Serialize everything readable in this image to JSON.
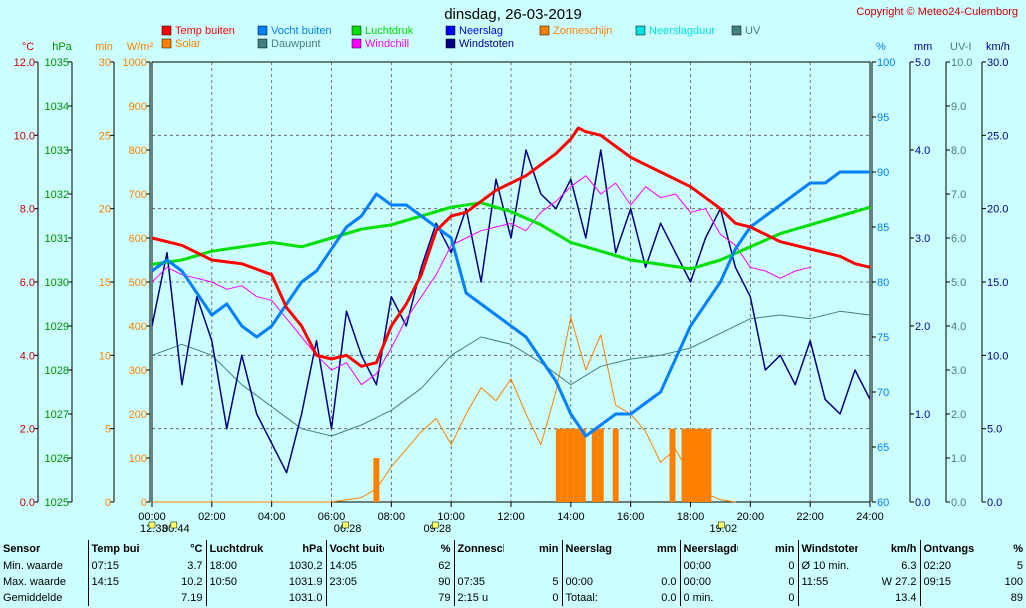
{
  "title": "dinsdag, 26-03-2019",
  "copyright": "Copyright © Meteo24-Culemborg",
  "chart_data": {
    "type": "line",
    "x_ticks": [
      "00:00",
      "02:00",
      "04:00",
      "06:00",
      "08:00",
      "10:00",
      "12:00",
      "14:00",
      "16:00",
      "18:00",
      "20:00",
      "22:00",
      "24:00"
    ],
    "x_range": [
      0,
      24
    ],
    "legend": [
      {
        "name": "Temp buiten",
        "color": "#ff0000"
      },
      {
        "name": "Vocht buiten",
        "color": "#0080ff"
      },
      {
        "name": "Luchtdruk",
        "color": "#00e000"
      },
      {
        "name": "Neerslag",
        "color": "#0000ff"
      },
      {
        "name": "Zonneschijn",
        "color": "#ff8000"
      },
      {
        "name": "Neerslagduur",
        "color": "#00e0e0"
      },
      {
        "name": "UV",
        "color": "#408080"
      },
      {
        "name": "Solar",
        "color": "#ff8000"
      },
      {
        "name": "Dauwpunt",
        "color": "#408080"
      },
      {
        "name": "Windchill",
        "color": "#ff00ff"
      },
      {
        "name": "Windstoten",
        "color": "#000080"
      }
    ],
    "axes_left": [
      {
        "unit": "°C",
        "color": "#cc0000",
        "range": [
          0,
          12
        ],
        "ticks": [
          "0.0",
          "2.0",
          "4.0",
          "6.0",
          "8.0",
          "10.0",
          "12.0"
        ]
      },
      {
        "unit": "hPa",
        "color": "#009000",
        "range": [
          1025,
          1035
        ],
        "ticks": [
          "1025",
          "1026",
          "1027",
          "1028",
          "1029",
          "1030",
          "1031",
          "1032",
          "1033",
          "1034",
          "1035"
        ]
      },
      {
        "unit": "min",
        "color": "#ff8000",
        "range": [
          0,
          30
        ],
        "ticks": [
          "0",
          "5",
          "10",
          "15",
          "20",
          "25",
          "30"
        ]
      },
      {
        "unit": "W/m²",
        "color": "#ff8000",
        "range": [
          0,
          1000
        ],
        "ticks": [
          "0",
          "100",
          "200",
          "300",
          "400",
          "500",
          "600",
          "700",
          "800",
          "900",
          "1000"
        ]
      }
    ],
    "axes_right": [
      {
        "unit": "%",
        "color": "#0080ff",
        "range": [
          60,
          100
        ],
        "ticks": [
          "60",
          "65",
          "70",
          "75",
          "80",
          "85",
          "90",
          "95",
          "100"
        ]
      },
      {
        "unit": "mm",
        "color": "#0000a0",
        "range": [
          0,
          5
        ],
        "ticks": [
          "0.0",
          "1.0",
          "2.0",
          "3.0",
          "4.0",
          "5.0"
        ]
      },
      {
        "unit": "UV-I",
        "color": "#408080",
        "range": [
          0,
          10
        ],
        "ticks": [
          "0.0",
          "1.0",
          "2.0",
          "3.0",
          "4.0",
          "5.0",
          "6.0",
          "7.0",
          "8.0",
          "9.0",
          "10.0"
        ]
      },
      {
        "unit": "km/h",
        "color": "#000080",
        "range": [
          0,
          30
        ],
        "ticks": [
          "0.0",
          "5.0",
          "10.0",
          "15.0",
          "20.0",
          "25.0",
          "30.0"
        ]
      }
    ],
    "series": [
      {
        "name": "Temp buiten",
        "axis": "°C",
        "color": "#ff0000",
        "width": 3,
        "x": [
          0,
          1,
          1.5,
          2,
          3,
          4,
          4.5,
          5,
          5.5,
          6,
          6.5,
          7,
          7.5,
          8,
          8.5,
          9,
          9.5,
          10,
          10.5,
          11,
          11.5,
          12,
          12.5,
          13,
          13.5,
          14,
          14.25,
          14.5,
          15,
          15.5,
          16,
          16.5,
          17,
          17.5,
          18,
          18.5,
          19,
          19.5,
          20,
          20.5,
          21,
          21.5,
          22,
          22.5,
          23,
          23.5,
          24
        ],
        "y": [
          7.2,
          7.0,
          6.8,
          6.6,
          6.5,
          6.2,
          5.3,
          4.8,
          4.0,
          3.9,
          4.0,
          3.7,
          3.8,
          4.8,
          5.4,
          6.2,
          7.4,
          7.8,
          7.9,
          8.2,
          8.5,
          8.7,
          8.9,
          9.2,
          9.5,
          9.9,
          10.2,
          10.1,
          10.0,
          9.7,
          9.4,
          9.2,
          9.0,
          8.8,
          8.6,
          8.3,
          8.0,
          7.6,
          7.5,
          7.3,
          7.1,
          7.0,
          6.9,
          6.8,
          6.7,
          6.5,
          6.4
        ]
      },
      {
        "name": "Vocht buiten",
        "axis": "%",
        "color": "#0080ff",
        "width": 3,
        "x": [
          0,
          0.5,
          1,
          1.5,
          2,
          2.5,
          3,
          3.5,
          4,
          4.5,
          5,
          5.5,
          6,
          6.5,
          7,
          7.5,
          8,
          8.5,
          9,
          9.5,
          10,
          10.5,
          11,
          11.5,
          12,
          12.5,
          13,
          13.5,
          14,
          14.5,
          15,
          15.5,
          16,
          16.5,
          17,
          17.5,
          18,
          18.5,
          19,
          19.5,
          20,
          20.5,
          21,
          21.5,
          22,
          22.5,
          23,
          23.5,
          24
        ],
        "y": [
          81,
          82,
          81,
          79,
          77,
          78,
          76,
          75,
          76,
          78,
          80,
          81,
          83,
          85,
          86,
          88,
          87,
          87,
          86,
          85,
          84,
          79,
          78,
          77,
          76,
          75,
          73,
          71,
          68,
          66,
          67,
          68,
          68,
          69,
          70,
          73,
          76,
          78,
          80,
          83,
          85,
          86,
          87,
          88,
          89,
          89,
          90,
          90,
          90
        ]
      },
      {
        "name": "Luchtdruk",
        "axis": "hPa",
        "color": "#00e000",
        "width": 3,
        "x": [
          0,
          1,
          2,
          3,
          4,
          5,
          6,
          7,
          8,
          9,
          10,
          11,
          12,
          13,
          14,
          15,
          16,
          17,
          18,
          19,
          20,
          21,
          22,
          23,
          24
        ],
        "y": [
          1030.4,
          1030.5,
          1030.7,
          1030.8,
          1030.9,
          1030.8,
          1031.0,
          1031.2,
          1031.3,
          1031.5,
          1031.7,
          1031.8,
          1031.6,
          1031.3,
          1030.9,
          1030.7,
          1030.5,
          1030.4,
          1030.3,
          1030.5,
          1030.8,
          1031.1,
          1031.3,
          1031.5,
          1031.7
        ]
      },
      {
        "name": "Windchill",
        "axis": "°C",
        "color": "#ff00ff",
        "width": 1,
        "x": [
          0,
          0.5,
          1,
          1.5,
          2,
          2.5,
          3,
          3.5,
          4,
          4.5,
          5,
          5.5,
          6,
          6.5,
          7,
          7.5,
          8,
          8.5,
          9,
          9.5,
          10,
          10.5,
          11,
          11.5,
          12,
          12.5,
          13,
          13.5,
          14,
          14.5,
          15,
          15.5,
          16,
          16.5,
          17,
          17.5,
          18,
          18.5,
          19,
          19.5,
          20,
          20.5,
          21,
          21.5,
          22
        ],
        "y": [
          6.0,
          6.4,
          6.2,
          6.1,
          6.0,
          5.8,
          5.9,
          5.6,
          5.5,
          5.0,
          4.5,
          4.0,
          3.6,
          3.8,
          3.2,
          3.5,
          4.2,
          5.0,
          5.6,
          6.2,
          7.0,
          7.2,
          7.4,
          7.5,
          7.6,
          7.4,
          7.9,
          8.2,
          8.6,
          8.9,
          8.4,
          8.7,
          8.1,
          8.6,
          8.3,
          8.4,
          7.9,
          8.0,
          7.3,
          7.0,
          6.4,
          6.3,
          6.1,
          6.3,
          6.4
        ]
      },
      {
        "name": "Dauwpunt",
        "axis": "°C",
        "color": "#408080",
        "width": 1,
        "x": [
          0,
          1,
          2,
          3,
          4,
          5,
          6,
          7,
          8,
          9,
          10,
          11,
          12,
          13,
          14,
          15,
          16,
          17,
          18,
          19,
          20,
          21,
          22,
          23,
          24
        ],
        "y": [
          4.0,
          4.3,
          4.0,
          3.2,
          2.6,
          2.0,
          1.8,
          2.1,
          2.5,
          3.1,
          4.0,
          4.5,
          4.3,
          3.8,
          3.2,
          3.7,
          3.9,
          4.0,
          4.2,
          4.6,
          5.0,
          5.1,
          5.0,
          5.2,
          5.1
        ]
      },
      {
        "name": "Windstoten",
        "axis": "km/h",
        "color": "#000080",
        "width": 1.5,
        "x": [
          0,
          0.5,
          1,
          1.5,
          2,
          2.5,
          3,
          3.5,
          4,
          4.5,
          5,
          5.5,
          6,
          6.5,
          7,
          7.5,
          8,
          8.5,
          9,
          9.5,
          10,
          10.5,
          11,
          11.5,
          12,
          12.5,
          13,
          13.5,
          14,
          14.5,
          15,
          15.5,
          16,
          16.5,
          17,
          17.5,
          18,
          18.5,
          19,
          19.5,
          20,
          20.5,
          21,
          21.5,
          22,
          22.5,
          23,
          23.5,
          24
        ],
        "y": [
          12,
          17,
          8,
          14,
          11,
          5,
          10,
          6,
          4,
          2,
          6,
          11,
          5,
          13,
          10,
          8,
          14,
          12,
          16,
          19,
          17,
          20,
          15,
          22,
          18,
          24,
          21,
          20,
          22,
          18,
          24,
          17,
          20,
          16,
          19,
          17,
          15,
          18,
          20,
          16,
          14,
          9,
          10,
          8,
          11,
          7,
          6,
          9,
          7
        ]
      },
      {
        "name": "Solar",
        "axis": "W/m²",
        "color": "#ff8000",
        "width": 1,
        "x": [
          0,
          6,
          7,
          7.5,
          8,
          8.5,
          9,
          9.5,
          10,
          10.5,
          11,
          11.5,
          12,
          12.5,
          13,
          13.5,
          14,
          14.5,
          15,
          15.5,
          16,
          16.5,
          17,
          17.5,
          18,
          18.5,
          19,
          19.5
        ],
        "y": [
          0,
          0,
          10,
          30,
          80,
          120,
          160,
          190,
          130,
          200,
          260,
          230,
          280,
          200,
          130,
          250,
          420,
          300,
          380,
          220,
          200,
          160,
          90,
          120,
          60,
          20,
          5,
          0
        ]
      }
    ],
    "bar_series": [
      {
        "name": "Zonneschijn",
        "axis": "min",
        "color": "#ff8000",
        "x": [
          7.5,
          13.6,
          13.8,
          14.0,
          14.2,
          14.4,
          14.8,
          15.0,
          15.5,
          17.4,
          17.8,
          18.0,
          18.2,
          18.4,
          18.6
        ],
        "y": [
          3,
          5,
          5,
          5,
          5,
          5,
          5,
          5,
          5,
          5,
          5,
          5,
          5,
          5,
          5
        ]
      }
    ],
    "time_markers": [
      {
        "label": "12:33",
        "x": -0.4
      },
      {
        "label": "00:44",
        "x": 0.73
      },
      {
        "label": "06:28",
        "x": 6.47
      },
      {
        "label": "09:28",
        "x": 9.47
      },
      {
        "label": "19:02",
        "x": 19.03
      }
    ]
  },
  "stats": {
    "headers": [
      {
        "label": "Sensor",
        "unit": ""
      },
      {
        "label": "Temp buiten",
        "unit": "°C"
      },
      {
        "label": "Luchtdruk",
        "unit": "hPa"
      },
      {
        "label": "Vocht buiten",
        "unit": "%"
      },
      {
        "label": "Zonneschijn",
        "unit": "min"
      },
      {
        "label": "Neerslag",
        "unit": "mm"
      },
      {
        "label": "Neerslagduur",
        "unit": "min"
      },
      {
        "label": "Windstoten",
        "unit": "km/h"
      },
      {
        "label": "Ontvangst",
        "unit": "%"
      }
    ],
    "rows": [
      {
        "label": "Min. waarde",
        "cells": [
          [
            "07:15",
            "3.7"
          ],
          [
            "18:00",
            "1030.2"
          ],
          [
            "14:05",
            "62"
          ],
          [
            "",
            ""
          ],
          [
            "",
            ""
          ],
          [
            "00:00",
            "0"
          ],
          [
            "Ø 10 min.",
            "6.3"
          ],
          [
            "02:20",
            "5"
          ]
        ]
      },
      {
        "label": "Max. waarde",
        "cells": [
          [
            "14:15",
            "10.2"
          ],
          [
            "10:50",
            "1031.9"
          ],
          [
            "23:05",
            "90"
          ],
          [
            "07:35",
            "5"
          ],
          [
            "00:00",
            "0.0"
          ],
          [
            "00:00",
            "0"
          ],
          [
            "11:55",
            "W 27.2"
          ],
          [
            "09:15",
            "100"
          ]
        ]
      },
      {
        "label": "Gemiddelde",
        "cells": [
          [
            "",
            "7.19"
          ],
          [
            "",
            "1031.0"
          ],
          [
            "",
            "79"
          ],
          [
            "2:15 u",
            "0"
          ],
          [
            "Totaal:",
            "0.0"
          ],
          [
            "0 min.",
            "0"
          ],
          [
            "",
            "13.4"
          ],
          [
            "",
            "89"
          ]
        ]
      }
    ]
  }
}
